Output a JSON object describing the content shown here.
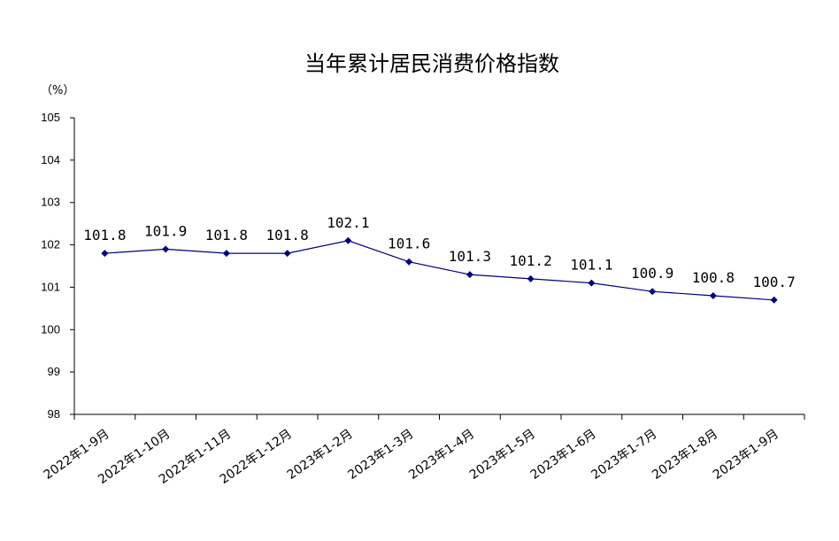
{
  "chart_data": {
    "type": "line",
    "title": "当年累计居民消费价格指数",
    "ylabel": "（%）",
    "xlabel": "",
    "categories": [
      "2022年1-9月",
      "2022年1-10月",
      "2022年1-11月",
      "2022年1-12月",
      "2023年1-2月",
      "2023年1-3月",
      "2023年1-4月",
      "2023年1-5月",
      "2023年1-6月",
      "2023年1-7月",
      "2023年1-8月",
      "2023年1-9月"
    ],
    "series": [
      {
        "values": [
          101.8,
          101.9,
          101.8,
          101.8,
          102.1,
          101.6,
          101.3,
          101.2,
          101.1,
          100.9,
          100.8,
          100.7
        ]
      }
    ],
    "data_labels": [
      "101.8",
      "101.9",
      "101.8",
      "101.8",
      "102.1",
      "101.6",
      "101.3",
      "101.2",
      "101.1",
      "100.9",
      "100.8",
      "100.7"
    ],
    "ylim": [
      98,
      105
    ],
    "yticks": [
      "98",
      "99",
      "100",
      "101",
      "102",
      "103",
      "104",
      "105"
    ],
    "grid": false,
    "legend": "none",
    "colors": {
      "series": "#000080",
      "axis": "#000000"
    }
  }
}
